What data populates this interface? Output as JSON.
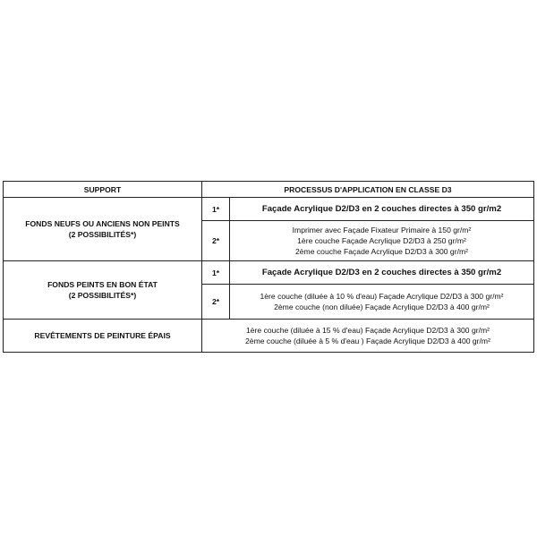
{
  "table": {
    "headers": {
      "support": "SUPPORT",
      "process": "PROCESSUS D'APPLICATION EN CLASSE D3"
    },
    "rows": [
      {
        "support": [
          "FONDS NEUFS OU ANCIENS NON PEINTS",
          "(2 POSSIBILITÉS*)"
        ],
        "options": [
          {
            "num": "1*",
            "lines": [
              "Façade Acrylique D2/D3 en 2 couches directes à 350 gr/m2"
            ],
            "bold": true
          },
          {
            "num": "2*",
            "lines": [
              "Imprimer avec Façade Fixateur Primaire à 150 gr/m²",
              "1ère couche Façade Acrylique D2/D3  à 250 gr/m²",
              "2ème couche Façade Acrylique D2/D3 à 300 gr/m²"
            ],
            "bold": false
          }
        ]
      },
      {
        "support": [
          "FONDS PEINTS EN BON ÉTAT",
          "(2 POSSIBILITÉS*)"
        ],
        "options": [
          {
            "num": "1*",
            "lines": [
              "Façade Acrylique D2/D3 en 2 couches directes à 350 gr/m2"
            ],
            "bold": true
          },
          {
            "num": "2*",
            "lines": [
              "1ère couche (diluée à 10 % d'eau) Façade Acrylique D2/D3 à 300 gr/m²",
              "2ème couche (non diluée) Façade Acrylique D2/D3 à 400 gr/m²"
            ],
            "bold": false
          }
        ]
      },
      {
        "support": [
          "REVÊTEMENTS DE PEINTURE ÉPAIS"
        ],
        "lines": [
          "1ère couche (diluée à 15 % d'eau) Façade Acrylique D2/D3 à 300 gr/m²",
          "2ème couche (diluée à 5 % d'eau ) Façade Acrylique D2/D3 à 400 gr/m²"
        ]
      }
    ]
  }
}
